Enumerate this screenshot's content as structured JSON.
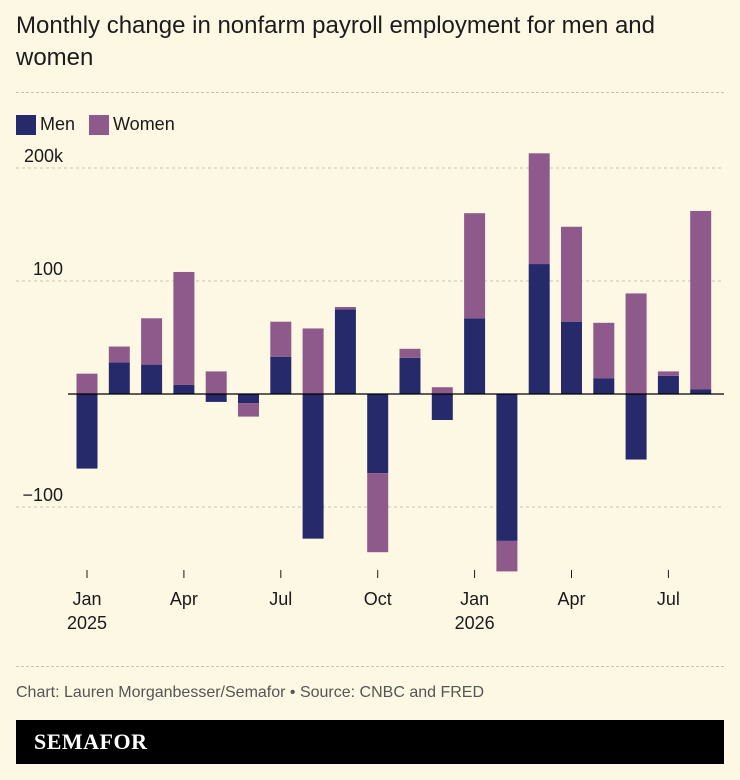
{
  "title": "Monthly change in nonfarm payroll employment for men and women",
  "legend": {
    "men_label": "Men",
    "women_label": "Women"
  },
  "colors": {
    "men": "#262a6b",
    "women": "#8e5a8c",
    "background": "#fdf8e4",
    "grid": "#c8c3b0"
  },
  "source": "Chart: Lauren Morganbesser/Semafor • Source: CNBC and FRED",
  "brand": "SEMAFOR",
  "chart_data": {
    "type": "bar",
    "stacked": true,
    "categories": [
      "2025-01",
      "2025-02",
      "2025-03",
      "2025-04",
      "2025-05",
      "2025-06",
      "2025-07",
      "2025-08",
      "2025-09",
      "2025-10",
      "2025-11",
      "2025-12",
      "2026-01",
      "2026-02",
      "2026-03",
      "2026-04",
      "2026-05",
      "2026-06",
      "2026-07",
      "2026-08"
    ],
    "series": [
      {
        "name": "Men",
        "values": [
          -66,
          28,
          26,
          8,
          -7,
          -8,
          33,
          -128,
          75,
          -70,
          32,
          -23,
          67,
          -130,
          115,
          64,
          14,
          -58,
          16,
          4
        ]
      },
      {
        "name": "Women",
        "values": [
          18,
          14,
          41,
          100,
          20,
          -12,
          31,
          58,
          2,
          -70,
          8,
          6,
          93,
          -27,
          98,
          84,
          49,
          89,
          4,
          158
        ]
      }
    ],
    "ylim": [
      -160,
      225
    ],
    "yticks": [
      -100,
      0,
      100,
      200
    ],
    "ytick_labels": [
      "−100",
      "",
      "100",
      "200k"
    ],
    "xticks": [
      {
        "month": "2025-01",
        "label": "Jan",
        "sublabel": "2025"
      },
      {
        "month": "2025-04",
        "label": "Apr",
        "sublabel": ""
      },
      {
        "month": "2025-07",
        "label": "Jul",
        "sublabel": ""
      },
      {
        "month": "2025-10",
        "label": "Oct",
        "sublabel": ""
      },
      {
        "month": "2026-01",
        "label": "Jan",
        "sublabel": "2026"
      },
      {
        "month": "2026-04",
        "label": "Apr",
        "sublabel": ""
      },
      {
        "month": "2026-07",
        "label": "Jul",
        "sublabel": ""
      }
    ],
    "grid": true,
    "legend_position": "top-left"
  }
}
